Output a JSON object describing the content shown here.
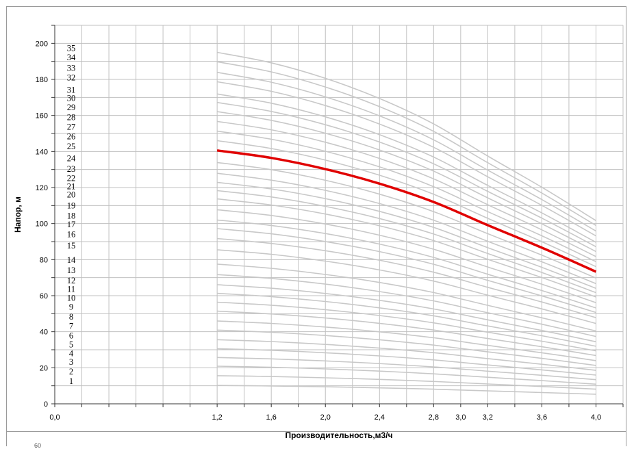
{
  "chart_data": {
    "type": "line",
    "title": "",
    "xlabel": "Производительность,м3/ч",
    "ylabel": "Напор, м",
    "xlim": [
      0,
      4.2
    ],
    "ylim": [
      0,
      210
    ],
    "x_ticks": [
      "0,0",
      "1,2",
      "1,6",
      "2,0",
      "2,4",
      "2,8",
      "3,0",
      "3,2",
      "3,6",
      "4,0"
    ],
    "y_ticks": [
      "0",
      "20",
      "40",
      "60",
      "80",
      "100",
      "120",
      "140",
      "160",
      "180",
      "200"
    ],
    "grid": true,
    "x": [
      1.2,
      1.6,
      2.0,
      2.4,
      2.8,
      3.2,
      3.6,
      4.0
    ],
    "curve_shape": [
      1.0,
      0.9703,
      0.9262,
      0.8688,
      0.7965,
      0.7049,
      0.6161,
      0.5213
    ],
    "stage_labels": [
      "1",
      "2",
      "3",
      "4",
      "5",
      "6",
      "7",
      "8",
      "9",
      "10",
      "11",
      "12",
      "13",
      "14",
      "15",
      "16",
      "17",
      "18",
      "19",
      "20",
      "21",
      "22",
      "23",
      "24",
      "25",
      "26",
      "27",
      "28",
      "29",
      "30",
      "31",
      "32",
      "33",
      "34",
      "35"
    ],
    "series_shutoff_heads": [
      10.2,
      15.6,
      20.9,
      25.7,
      30.6,
      35.6,
      40.9,
      46.0,
      51.4,
      56.4,
      61.3,
      66.1,
      71.7,
      77.5,
      85.5,
      91.7,
      97.2,
      102.0,
      107.7,
      113.7,
      118.3,
      122.9,
      127.9,
      133.9,
      140.6,
      146.0,
      151.3,
      156.7,
      162.1,
      167.2,
      171.9,
      178.7,
      183.9,
      189.8,
      195.0
    ],
    "highlight_series": "25",
    "colors": {
      "curve": "#c8c8c8",
      "highlight": "#e00000",
      "grid": "#c0c0c0"
    }
  },
  "footer": {
    "note": "60"
  }
}
